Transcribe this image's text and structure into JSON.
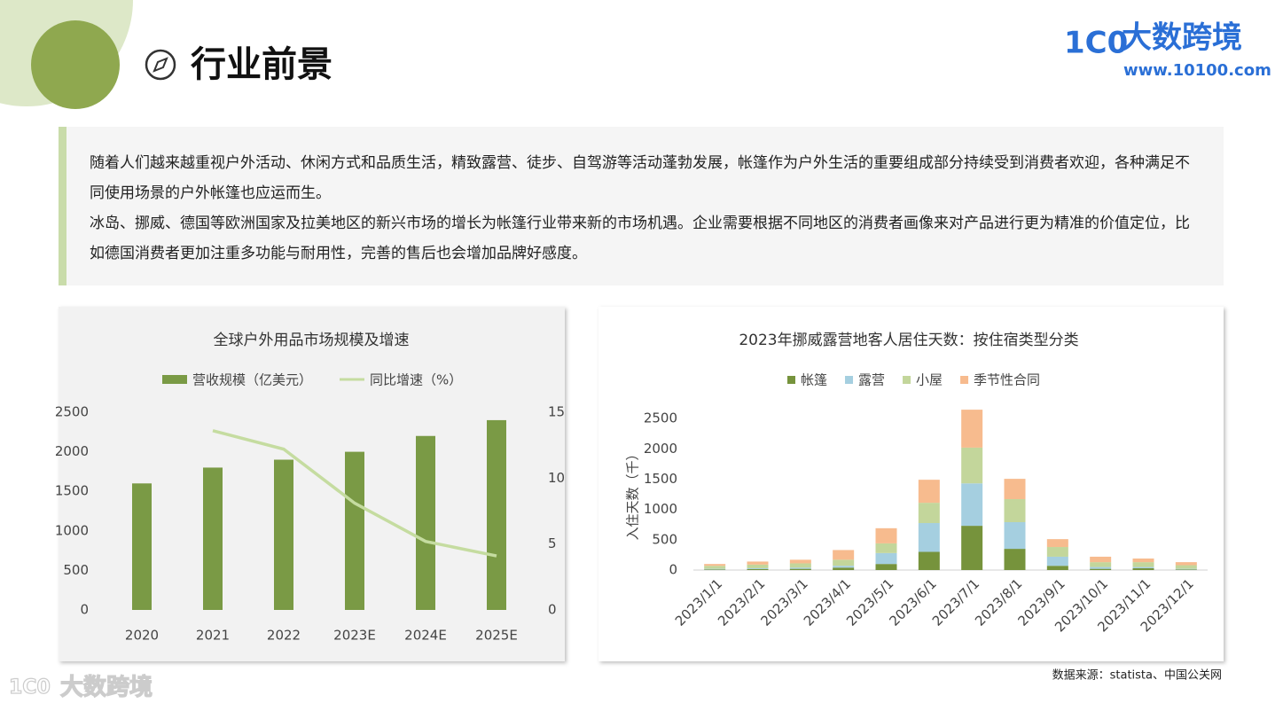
{
  "header": {
    "title": "行业前景",
    "logo_text": "大数跨境",
    "logo_url": "www.10100.com"
  },
  "intro": {
    "paragraphs": [
      "随着人们越来越重视户外活动、休闲方式和品质生活，精致露营、徒步、自驾游等活动蓬勃发展，帐篷作为户外生活的重要组成部分持续受到消费者欢迎，各种满足不同使用场景的户外帐篷也应运而生。",
      "冰岛、挪威、德国等欧洲国家及拉美地区的新兴市场的增长为帐篷行业带来新的市场机遇。企业需要根据不同地区的消费者画像来对产品进行更为精准的价值定位，比如德国消费者更加注重多功能与耐用性，完善的售后也会增加品牌好感度。"
    ]
  },
  "chart_data": [
    {
      "type": "bar_line",
      "title": "全球户外用品市场规模及增速",
      "categories": [
        "2020",
        "2021",
        "2022",
        "2023E",
        "2024E",
        "2025E"
      ],
      "series": [
        {
          "name": "营收规模（亿美元）",
          "type": "bar",
          "color": "#7a9a45",
          "values": [
            1600,
            1800,
            1900,
            2000,
            2200,
            2400
          ]
        },
        {
          "name": "同比增速（%）",
          "type": "line",
          "axis": "y2",
          "color": "#c5dca0",
          "values": [
            null,
            13.6,
            12.2,
            8.1,
            5.2,
            4.1
          ]
        }
      ],
      "ylim": [
        0,
        2500
      ],
      "yticks": [
        0,
        500,
        1000,
        1500,
        2000,
        2500
      ],
      "y2lim": [
        0,
        15
      ],
      "y2ticks": [
        0,
        5,
        10,
        15
      ],
      "legend": "top",
      "grid": false
    },
    {
      "type": "stacked_bar",
      "title": "2023年挪威露营地客人居住天数：按住宿类型分类",
      "y_label": "入住天数（千）",
      "categories": [
        "2023/1/1",
        "2023/2/1",
        "2023/3/1",
        "2023/4/1",
        "2023/5/1",
        "2023/6/1",
        "2023/7/1",
        "2023/8/1",
        "2023/9/1",
        "2023/10/1",
        "2023/11/1",
        "2023/12/1"
      ],
      "series": [
        {
          "name": "帐篷",
          "color": "#76933c",
          "values": [
            10,
            15,
            20,
            40,
            100,
            300,
            730,
            350,
            70,
            20,
            30,
            10
          ]
        },
        {
          "name": "露营",
          "color": "#a5cfe0",
          "values": [
            10,
            15,
            20,
            30,
            180,
            475,
            700,
            440,
            150,
            30,
            20,
            10
          ]
        },
        {
          "name": "小屋",
          "color": "#c3d69b",
          "values": [
            50,
            60,
            70,
            100,
            160,
            335,
            590,
            380,
            160,
            80,
            80,
            60
          ]
        },
        {
          "name": "季节性合同",
          "color": "#f7bb8e",
          "values": [
            30,
            50,
            60,
            160,
            250,
            380,
            626,
            335,
            130,
            90,
            60,
            50
          ]
        }
      ],
      "ylim": [
        0,
        2750
      ],
      "yticks": [
        0,
        500,
        1000,
        1500,
        2000,
        2500
      ],
      "legend": "top",
      "grid": false
    }
  ],
  "source": "数据来源：statista、中国公关网"
}
